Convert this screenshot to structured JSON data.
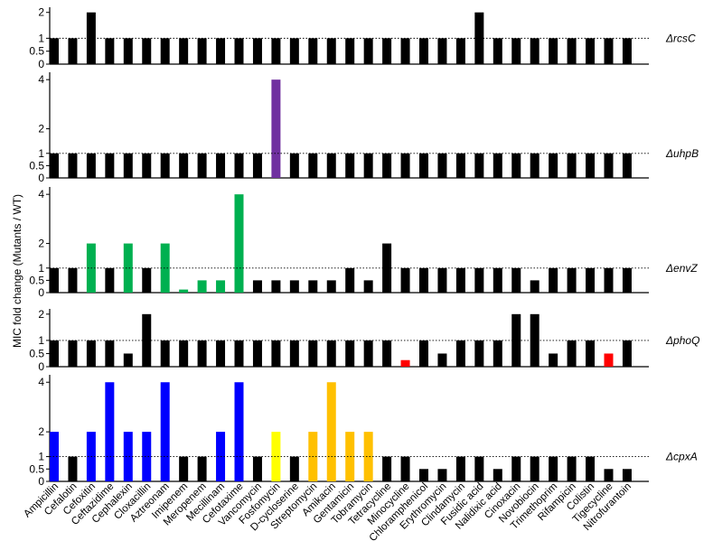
{
  "chart_data": {
    "type": "bar",
    "ylabel": "MIC fold change (Mutants / WT)",
    "categories": [
      "Ampicillin",
      "Cefalotin",
      "Cefoxitin",
      "Ceftazidime",
      "Cephalexin",
      "Cloxacillin",
      "Aztreonam",
      "Imipenem",
      "Meropenem",
      "Mecillinam",
      "Cefotaxime",
      "Vancomycin",
      "Fosfomycin",
      "D-cycloserine",
      "Streptomycin",
      "Amikacin",
      "Gentamicin",
      "Tobramycin",
      "Tetracycline",
      "Minocycline",
      "Chloramphenicol",
      "Erythromycin",
      "Clindamycin",
      "Fusidic acid",
      "Nalidixic acid",
      "Cinoxacin",
      "Novobiocin",
      "Trimethoprim",
      "Rifampicin",
      "Colistin",
      "Tigecycline",
      "Nitrofurantoin"
    ],
    "reference_line": 1,
    "panels": [
      {
        "label": "ΔrcsC",
        "ylim": [
          0,
          2.2
        ],
        "yticks": [
          "0",
          "0.5",
          "1",
          "2"
        ],
        "values": [
          1,
          1,
          2,
          1,
          1,
          1,
          1,
          1,
          1,
          1,
          1,
          1,
          1,
          1,
          1,
          1,
          1,
          1,
          1,
          1,
          1,
          1,
          1,
          2,
          1,
          1,
          1,
          1,
          1,
          1,
          1,
          1
        ],
        "colors": [
          "#000000",
          "#000000",
          "#000000",
          "#000000",
          "#000000",
          "#000000",
          "#000000",
          "#000000",
          "#000000",
          "#000000",
          "#000000",
          "#000000",
          "#000000",
          "#000000",
          "#000000",
          "#000000",
          "#000000",
          "#000000",
          "#000000",
          "#000000",
          "#000000",
          "#000000",
          "#000000",
          "#000000",
          "#000000",
          "#000000",
          "#000000",
          "#000000",
          "#000000",
          "#000000",
          "#000000",
          "#000000"
        ]
      },
      {
        "label": "ΔuhpB",
        "ylim": [
          0,
          4.3
        ],
        "yticks": [
          "0",
          "0.5",
          "1",
          "2",
          "4"
        ],
        "values": [
          1,
          1,
          1,
          1,
          1,
          1,
          1,
          1,
          1,
          1,
          1,
          1,
          4,
          1,
          1,
          1,
          1,
          1,
          1,
          1,
          1,
          1,
          1,
          1,
          1,
          1,
          1,
          1,
          1,
          1,
          1,
          1
        ],
        "colors": [
          "#000000",
          "#000000",
          "#000000",
          "#000000",
          "#000000",
          "#000000",
          "#000000",
          "#000000",
          "#000000",
          "#000000",
          "#000000",
          "#000000",
          "#7030a0",
          "#000000",
          "#000000",
          "#000000",
          "#000000",
          "#000000",
          "#000000",
          "#000000",
          "#000000",
          "#000000",
          "#000000",
          "#000000",
          "#000000",
          "#000000",
          "#000000",
          "#000000",
          "#000000",
          "#000000",
          "#000000",
          "#000000"
        ]
      },
      {
        "label": "ΔenvZ",
        "ylim": [
          0,
          4.3
        ],
        "yticks": [
          "0",
          "0.5",
          "1",
          "2",
          "4"
        ],
        "values": [
          1,
          1,
          2,
          1,
          2,
          1,
          2,
          0.125,
          0.5,
          0.5,
          4,
          0.5,
          0.5,
          0.5,
          0.5,
          0.5,
          1,
          0.5,
          2,
          1,
          1,
          1,
          1,
          1,
          1,
          1,
          0.5,
          1,
          1,
          1,
          1,
          1
        ],
        "colors": [
          "#000000",
          "#000000",
          "#00b050",
          "#000000",
          "#00b050",
          "#000000",
          "#00b050",
          "#00b050",
          "#00b050",
          "#00b050",
          "#00b050",
          "#000000",
          "#000000",
          "#000000",
          "#000000",
          "#000000",
          "#000000",
          "#000000",
          "#000000",
          "#000000",
          "#000000",
          "#000000",
          "#000000",
          "#000000",
          "#000000",
          "#000000",
          "#000000",
          "#000000",
          "#000000",
          "#000000",
          "#000000",
          "#000000"
        ]
      },
      {
        "label": "ΔphoQ",
        "ylim": [
          0,
          2.2
        ],
        "yticks": [
          "0",
          "0.5",
          "1",
          "2"
        ],
        "values": [
          1,
          1,
          1,
          1,
          0.5,
          2,
          1,
          1,
          1,
          1,
          1,
          1,
          1,
          1,
          1,
          1,
          1,
          1,
          1,
          0.25,
          1,
          0.5,
          1,
          1,
          1,
          2,
          2,
          0.5,
          1,
          1,
          0.5,
          1
        ],
        "colors": [
          "#000000",
          "#000000",
          "#000000",
          "#000000",
          "#000000",
          "#000000",
          "#000000",
          "#000000",
          "#000000",
          "#000000",
          "#000000",
          "#000000",
          "#000000",
          "#000000",
          "#000000",
          "#000000",
          "#000000",
          "#000000",
          "#000000",
          "#ff0000",
          "#000000",
          "#000000",
          "#000000",
          "#000000",
          "#000000",
          "#000000",
          "#000000",
          "#000000",
          "#000000",
          "#000000",
          "#ff0000",
          "#000000"
        ]
      },
      {
        "label": "ΔcpxA",
        "ylim": [
          0,
          4.3
        ],
        "yticks": [
          "0",
          "0.5",
          "1",
          "2",
          "4"
        ],
        "values": [
          2,
          1,
          2,
          4,
          2,
          2,
          4,
          1,
          1,
          2,
          4,
          1,
          2,
          1,
          2,
          4,
          2,
          2,
          1,
          1,
          0.5,
          0.5,
          1,
          1,
          0.5,
          1,
          1,
          1,
          1,
          1,
          0.5,
          0.5
        ],
        "colors": [
          "#0000ff",
          "#000000",
          "#0000ff",
          "#0000ff",
          "#0000ff",
          "#0000ff",
          "#0000ff",
          "#000000",
          "#000000",
          "#0000ff",
          "#0000ff",
          "#000000",
          "#ffff00",
          "#000000",
          "#ffc000",
          "#ffc000",
          "#ffc000",
          "#ffc000",
          "#000000",
          "#000000",
          "#000000",
          "#000000",
          "#000000",
          "#000000",
          "#000000",
          "#000000",
          "#000000",
          "#000000",
          "#000000",
          "#000000",
          "#000000",
          "#000000"
        ]
      }
    ]
  }
}
